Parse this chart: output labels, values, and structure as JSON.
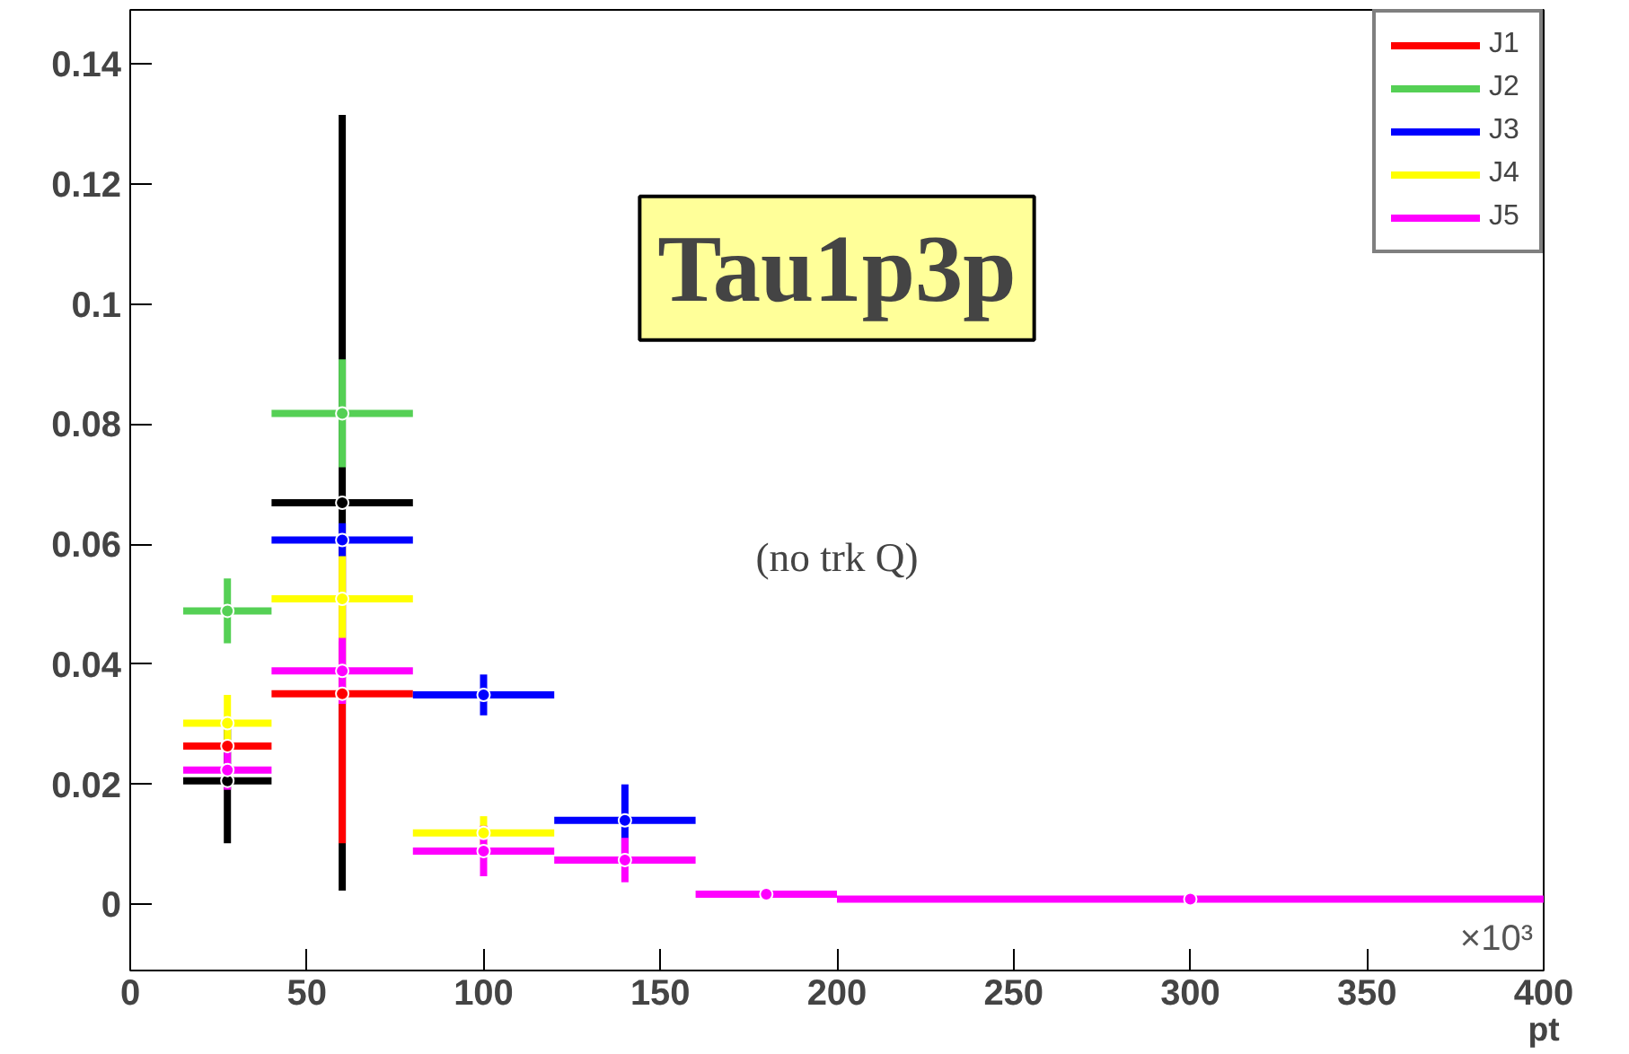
{
  "chart_data": {
    "type": "scatter",
    "marker": "circle",
    "xlabel": "pt",
    "xlim": [
      0,
      400
    ],
    "ylim": [
      -0.011,
      0.149
    ],
    "xticks": [
      0,
      50,
      100,
      150,
      200,
      250,
      300,
      350,
      400
    ],
    "yticks": [
      0,
      0.02,
      0.04,
      0.06,
      0.08,
      {
        "value": 0.1,
        "label": "0.1"
      },
      0.12,
      0.14
    ],
    "x": [
      27.5,
      60,
      100,
      140,
      180,
      300
    ],
    "grid": false,
    "legend": "top right",
    "annotations": [
      "Tau1p3p",
      "(no trk Q)",
      "×10³"
    ],
    "series": [
      {
        "color": "#000000",
        "values": [
          0.0206,
          0.0669,
          null,
          null,
          null,
          null
        ],
        "xerrors": [
          12.5,
          20,
          null,
          null,
          null,
          null
        ],
        "errors": [
          0.0104,
          0.0646,
          null,
          null,
          null,
          null
        ]
      },
      {
        "name": "J1",
        "color": "#ff0000",
        "values": [
          0.0264,
          0.0351,
          null,
          null,
          null,
          null
        ],
        "xerrors": [
          12.5,
          20,
          null,
          null,
          null,
          null
        ],
        "errors": [
          null,
          0.0249,
          null,
          null,
          null,
          null
        ]
      },
      {
        "name": "J2",
        "color": "#55d055",
        "values": [
          0.0489,
          0.0818,
          null,
          null,
          null,
          null
        ],
        "xerrors": [
          12.5,
          20,
          null,
          null,
          null,
          null
        ],
        "errors": [
          0.0054,
          0.009,
          null,
          null,
          null,
          null
        ]
      },
      {
        "name": "J3",
        "color": "#0000ff",
        "values": [
          null,
          0.0607,
          0.0349,
          0.014,
          null,
          null
        ],
        "xerrors": [
          null,
          20,
          20,
          20,
          null,
          null
        ],
        "errors": [
          null,
          0.0028,
          0.0034,
          0.006,
          null,
          null
        ]
      },
      {
        "name": "J4",
        "color": "#ffff00",
        "values": [
          0.0302,
          0.0509,
          0.0119,
          null,
          null,
          null
        ],
        "xerrors": [
          12.5,
          20,
          20,
          null,
          null,
          null
        ],
        "errors": [
          0.0047,
          0.0071,
          0.0028,
          null,
          null,
          null
        ]
      },
      {
        "name": "J5",
        "color": "#ff00ff",
        "values": [
          0.0224,
          0.0389,
          0.0089,
          0.0074,
          0.0017,
          0.0009
        ],
        "xerrors": [
          12.5,
          20,
          20,
          20,
          20,
          100
        ],
        "errors": [
          0.0033,
          0.0055,
          0.0042,
          0.0037,
          0.0008,
          null
        ]
      }
    ]
  }
}
